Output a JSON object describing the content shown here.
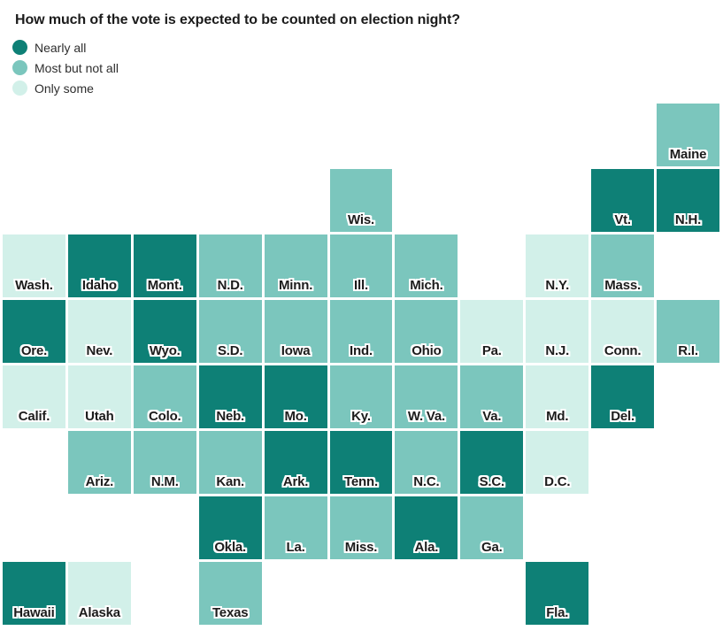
{
  "title": "How much of the vote is expected to be counted on election night?",
  "colors": {
    "nearly_all": "#0e8076",
    "most_but_not_all": "#7bc6bd",
    "only_some": "#d2f0e9",
    "label_text": "#1c1c1c",
    "title_text": "#1b1b1b",
    "background": "#ffffff"
  },
  "legend": {
    "items": [
      {
        "key": "nearly_all",
        "label": "Nearly all"
      },
      {
        "key": "most_but_not_all",
        "label": "Most but not all"
      },
      {
        "key": "only_some",
        "label": "Only some"
      }
    ]
  },
  "chart_data": {
    "type": "heatmap",
    "subtype": "us_state_tile_grid_cartogram",
    "title": "How much of the vote is expected to be counted on election night?",
    "categories": [
      "Nearly all",
      "Most but not all",
      "Only some"
    ],
    "legend_position": "top-left",
    "grid": {
      "columns": 11,
      "rows": 8
    },
    "states": [
      {
        "label": "Maine",
        "category": "most_but_not_all",
        "col": 11,
        "row": 1
      },
      {
        "label": "Wis.",
        "category": "most_but_not_all",
        "col": 6,
        "row": 2
      },
      {
        "label": "Vt.",
        "category": "nearly_all",
        "col": 10,
        "row": 2
      },
      {
        "label": "N.H.",
        "category": "nearly_all",
        "col": 11,
        "row": 2
      },
      {
        "label": "Wash.",
        "category": "only_some",
        "col": 1,
        "row": 3
      },
      {
        "label": "Idaho",
        "category": "nearly_all",
        "col": 2,
        "row": 3
      },
      {
        "label": "Mont.",
        "category": "nearly_all",
        "col": 3,
        "row": 3
      },
      {
        "label": "N.D.",
        "category": "most_but_not_all",
        "col": 4,
        "row": 3
      },
      {
        "label": "Minn.",
        "category": "most_but_not_all",
        "col": 5,
        "row": 3
      },
      {
        "label": "Ill.",
        "category": "most_but_not_all",
        "col": 6,
        "row": 3
      },
      {
        "label": "Mich.",
        "category": "most_but_not_all",
        "col": 7,
        "row": 3
      },
      {
        "label": "N.Y.",
        "category": "only_some",
        "col": 9,
        "row": 3
      },
      {
        "label": "Mass.",
        "category": "most_but_not_all",
        "col": 10,
        "row": 3
      },
      {
        "label": "Ore.",
        "category": "nearly_all",
        "col": 1,
        "row": 4
      },
      {
        "label": "Nev.",
        "category": "only_some",
        "col": 2,
        "row": 4
      },
      {
        "label": "Wyo.",
        "category": "nearly_all",
        "col": 3,
        "row": 4
      },
      {
        "label": "S.D.",
        "category": "most_but_not_all",
        "col": 4,
        "row": 4
      },
      {
        "label": "Iowa",
        "category": "most_but_not_all",
        "col": 5,
        "row": 4
      },
      {
        "label": "Ind.",
        "category": "most_but_not_all",
        "col": 6,
        "row": 4
      },
      {
        "label": "Ohio",
        "category": "most_but_not_all",
        "col": 7,
        "row": 4
      },
      {
        "label": "Pa.",
        "category": "only_some",
        "col": 8,
        "row": 4
      },
      {
        "label": "N.J.",
        "category": "only_some",
        "col": 9,
        "row": 4
      },
      {
        "label": "Conn.",
        "category": "only_some",
        "col": 10,
        "row": 4
      },
      {
        "label": "R.I.",
        "category": "most_but_not_all",
        "col": 11,
        "row": 4
      },
      {
        "label": "Calif.",
        "category": "only_some",
        "col": 1,
        "row": 5
      },
      {
        "label": "Utah",
        "category": "only_some",
        "col": 2,
        "row": 5
      },
      {
        "label": "Colo.",
        "category": "most_but_not_all",
        "col": 3,
        "row": 5
      },
      {
        "label": "Neb.",
        "category": "nearly_all",
        "col": 4,
        "row": 5
      },
      {
        "label": "Mo.",
        "category": "nearly_all",
        "col": 5,
        "row": 5
      },
      {
        "label": "Ky.",
        "category": "most_but_not_all",
        "col": 6,
        "row": 5
      },
      {
        "label": "W. Va.",
        "category": "most_but_not_all",
        "col": 7,
        "row": 5
      },
      {
        "label": "Va.",
        "category": "most_but_not_all",
        "col": 8,
        "row": 5
      },
      {
        "label": "Md.",
        "category": "only_some",
        "col": 9,
        "row": 5
      },
      {
        "label": "Del.",
        "category": "nearly_all",
        "col": 10,
        "row": 5
      },
      {
        "label": "Ariz.",
        "category": "most_but_not_all",
        "col": 2,
        "row": 6
      },
      {
        "label": "N.M.",
        "category": "most_but_not_all",
        "col": 3,
        "row": 6
      },
      {
        "label": "Kan.",
        "category": "most_but_not_all",
        "col": 4,
        "row": 6
      },
      {
        "label": "Ark.",
        "category": "nearly_all",
        "col": 5,
        "row": 6
      },
      {
        "label": "Tenn.",
        "category": "nearly_all",
        "col": 6,
        "row": 6
      },
      {
        "label": "N.C.",
        "category": "most_but_not_all",
        "col": 7,
        "row": 6
      },
      {
        "label": "S.C.",
        "category": "nearly_all",
        "col": 8,
        "row": 6
      },
      {
        "label": "D.C.",
        "category": "only_some",
        "col": 9,
        "row": 6
      },
      {
        "label": "Okla.",
        "category": "nearly_all",
        "col": 4,
        "row": 7
      },
      {
        "label": "La.",
        "category": "most_but_not_all",
        "col": 5,
        "row": 7
      },
      {
        "label": "Miss.",
        "category": "most_but_not_all",
        "col": 6,
        "row": 7
      },
      {
        "label": "Ala.",
        "category": "nearly_all",
        "col": 7,
        "row": 7
      },
      {
        "label": "Ga.",
        "category": "most_but_not_all",
        "col": 8,
        "row": 7
      },
      {
        "label": "Hawaii",
        "category": "nearly_all",
        "col": 1,
        "row": 8
      },
      {
        "label": "Alaska",
        "category": "only_some",
        "col": 2,
        "row": 8
      },
      {
        "label": "Texas",
        "category": "most_but_not_all",
        "col": 4,
        "row": 8
      },
      {
        "label": "Fla.",
        "category": "nearly_all",
        "col": 9,
        "row": 8
      }
    ]
  }
}
